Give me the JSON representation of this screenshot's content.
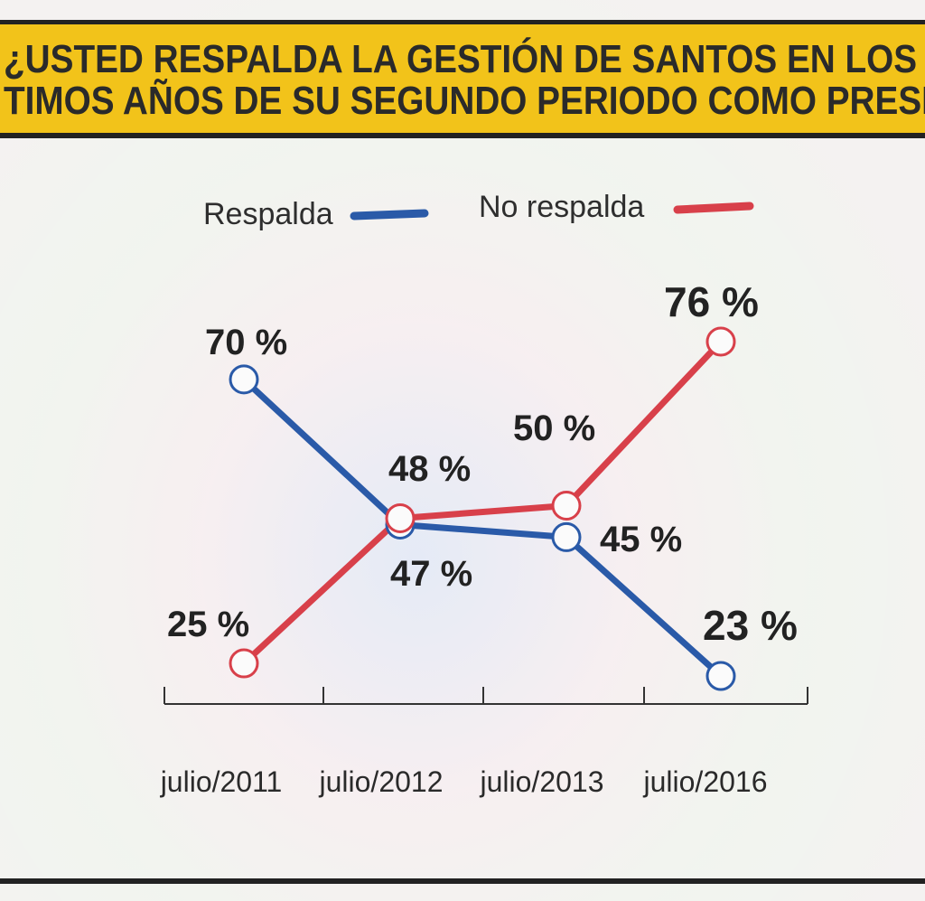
{
  "title": {
    "line1": "¿USTED RESPALDA LA GESTIÓN DE SANTOS EN LOS D",
    "line2": "TIMOS AÑOS DE SU SEGUNDO PERIODO COMO PRESIDE"
  },
  "chart_data": {
    "type": "line",
    "categories": [
      "julio/2011",
      "julio/2012",
      "julio/2013",
      "julio/2016"
    ],
    "series": [
      {
        "name": "Respalda",
        "color": "#2a5aa8",
        "values": [
          70,
          47,
          45,
          23
        ],
        "labels": [
          "70 %",
          "47 %",
          "45 %",
          "23 %"
        ]
      },
      {
        "name": "No respalda",
        "color": "#d8404a",
        "values": [
          25,
          48,
          50,
          76
        ],
        "labels": [
          "25 %",
          "48 %",
          "50 %",
          "76 %"
        ]
      }
    ],
    "legend": [
      "Respalda",
      "No respalda"
    ],
    "ylim": [
      23,
      76
    ],
    "grid": false,
    "legend_position": "top"
  }
}
